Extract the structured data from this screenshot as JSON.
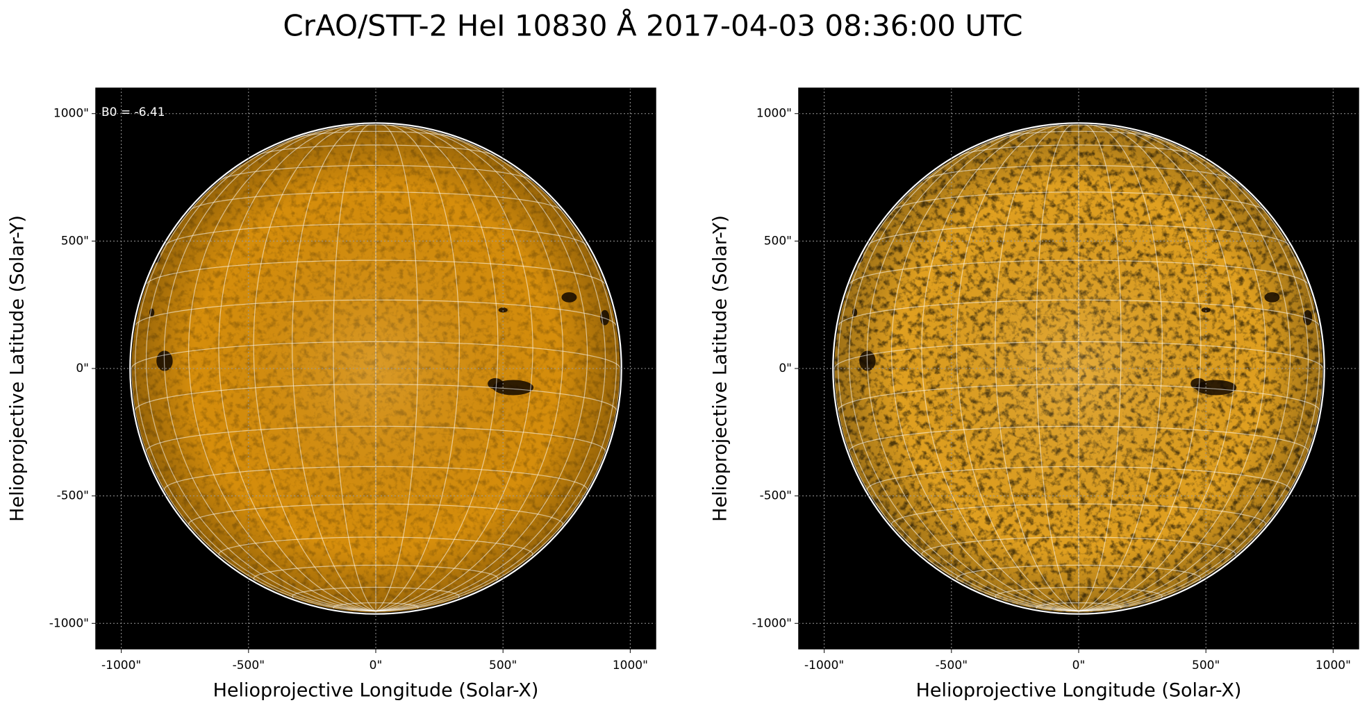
{
  "title": "CrAO/STT-2 HeI 10830 Å 2017-04-03 08:36:00 UTC",
  "chart_data": [
    {
      "type": "image",
      "xlabel": "Helioprojective Longitude (Solar-X)",
      "ylabel": "Helioprojective Latitude (Solar-Y)",
      "annotation": "B0 = -6.41",
      "color": "#d68e0c",
      "texture": 0.22,
      "grid": true,
      "xlim": [
        -1100,
        1100
      ],
      "ylim": [
        -1100,
        1100
      ],
      "xticks": [
        {
          "value": -1000,
          "label": "-1000\""
        },
        {
          "value": -500,
          "label": "-500\""
        },
        {
          "value": 0,
          "label": "0\""
        },
        {
          "value": 500,
          "label": "500\""
        },
        {
          "value": 1000,
          "label": "1000\""
        }
      ],
      "yticks": [
        {
          "value": -1000,
          "label": "-1000\""
        },
        {
          "value": -500,
          "label": "-500\""
        },
        {
          "value": 0,
          "label": "0\""
        },
        {
          "value": 500,
          "label": "500\""
        },
        {
          "value": 1000,
          "label": "1000\""
        }
      ]
    },
    {
      "type": "image",
      "xlabel": "Helioprojective Longitude (Solar-X)",
      "ylabel": "Helioprojective Latitude (Solar-Y)",
      "color": "#e0a020",
      "texture": 0.6,
      "grid": true,
      "xlim": [
        -1100,
        1100
      ],
      "ylim": [
        -1100,
        1100
      ],
      "xticks": [
        {
          "value": -1000,
          "label": "-1000\""
        },
        {
          "value": -500,
          "label": "-500\""
        },
        {
          "value": 0,
          "label": "0\""
        },
        {
          "value": 500,
          "label": "500\""
        },
        {
          "value": 1000,
          "label": "1000\""
        }
      ],
      "yticks": [
        {
          "value": -1000,
          "label": "-1000\""
        },
        {
          "value": -500,
          "label": "-500\""
        },
        {
          "value": 0,
          "label": "0\""
        },
        {
          "value": 500,
          "label": "500\""
        },
        {
          "value": 1000,
          "label": "1000\""
        }
      ]
    }
  ]
}
